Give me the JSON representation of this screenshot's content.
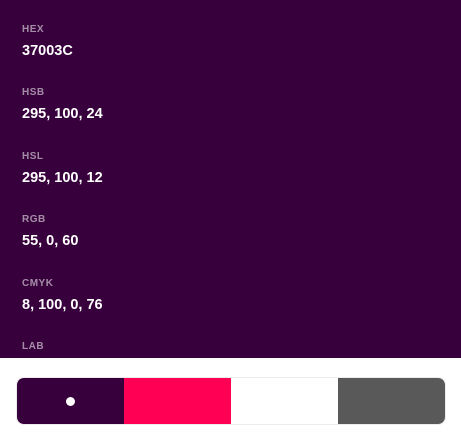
{
  "colors": {
    "background": "#37003C",
    "swatches": [
      "#37003C",
      "#FF0055",
      "#FFFFFF",
      "#595959"
    ]
  },
  "info": [
    {
      "label": "HEX",
      "value": "37003C"
    },
    {
      "label": "HSB",
      "value": "295, 100, 24"
    },
    {
      "label": "HSL",
      "value": "295, 100, 12"
    },
    {
      "label": "RGB",
      "value": "55, 0, 60"
    },
    {
      "label": "CMYK",
      "value": "8, 100, 0, 76"
    },
    {
      "label": "LAB",
      "value": ""
    }
  ],
  "palette": {
    "selected_index": 0,
    "selected_marker_icon": "dot-icon"
  }
}
